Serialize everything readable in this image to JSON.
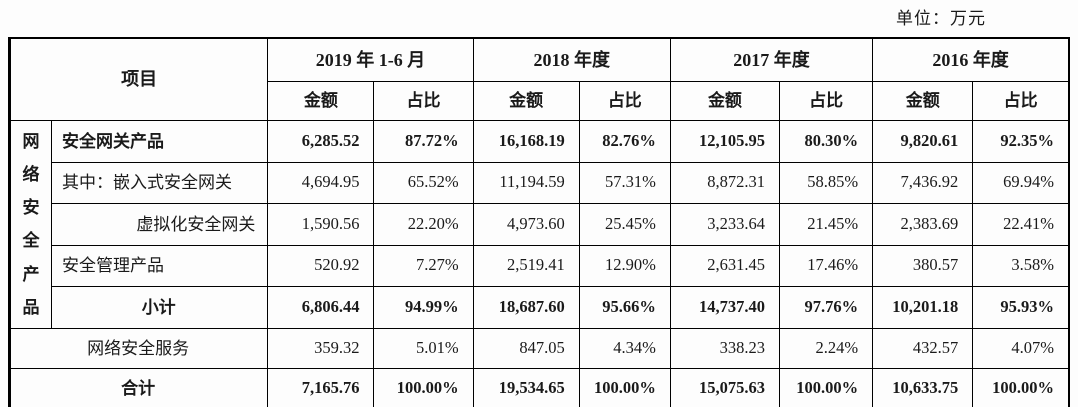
{
  "unit_label": "单位：万元",
  "colors": {
    "border": "#000000",
    "text": "#1a1a1a",
    "background": "#fdfdfd"
  },
  "table": {
    "header": {
      "item": "项目",
      "periods": [
        "2019 年 1-6 月",
        "2018 年度",
        "2017 年度",
        "2016 年度"
      ],
      "sub_labels": [
        "金额",
        "占比",
        "金额",
        "占比",
        "金额",
        "占比",
        "金额",
        "占比"
      ]
    },
    "group": {
      "label": "网络安全产品",
      "rowspan": 5
    },
    "rows": [
      {
        "label": "安全网关产品",
        "align": "left",
        "bold": true,
        "in_group": true,
        "values": [
          "6,285.52",
          "87.72%",
          "16,168.19",
          "82.76%",
          "12,105.95",
          "80.30%",
          "9,820.61",
          "92.35%"
        ]
      },
      {
        "label": "其中：嵌入式安全网关",
        "align": "left",
        "bold": false,
        "in_group": true,
        "values": [
          "4,694.95",
          "65.52%",
          "11,194.59",
          "57.31%",
          "8,872.31",
          "58.85%",
          "7,436.92",
          "69.94%"
        ]
      },
      {
        "label": "虚拟化安全网关",
        "align": "right",
        "bold": false,
        "in_group": true,
        "values": [
          "1,590.56",
          "22.20%",
          "4,973.60",
          "25.45%",
          "3,233.64",
          "21.45%",
          "2,383.69",
          "22.41%"
        ]
      },
      {
        "label": "安全管理产品",
        "align": "left",
        "bold": false,
        "in_group": true,
        "values": [
          "520.92",
          "7.27%",
          "2,519.41",
          "12.90%",
          "2,631.45",
          "17.46%",
          "380.57",
          "3.58%"
        ]
      },
      {
        "label": "小计",
        "align": "center",
        "bold": true,
        "in_group": true,
        "values": [
          "6,806.44",
          "94.99%",
          "18,687.60",
          "95.66%",
          "14,737.40",
          "97.76%",
          "10,201.18",
          "95.93%"
        ]
      },
      {
        "label": "网络安全服务",
        "align": "center",
        "bold": false,
        "in_group": false,
        "values": [
          "359.32",
          "5.01%",
          "847.05",
          "4.34%",
          "338.23",
          "2.24%",
          "432.57",
          "4.07%"
        ]
      },
      {
        "label": "合计",
        "align": "center",
        "bold": true,
        "in_group": false,
        "values": [
          "7,165.76",
          "100.00%",
          "19,534.65",
          "100.00%",
          "15,075.63",
          "100.00%",
          "10,633.75",
          "100.00%"
        ]
      }
    ]
  }
}
